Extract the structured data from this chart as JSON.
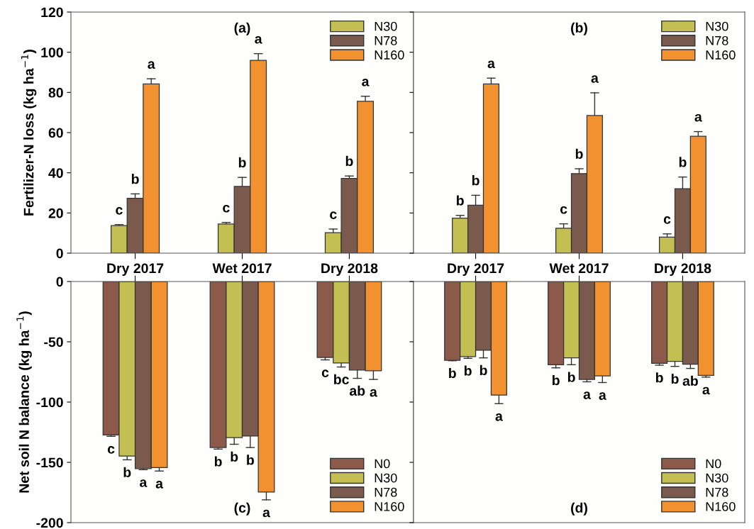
{
  "chart_data": [
    {
      "type": "bar",
      "title": "(a)",
      "ylabel": "Fertilizer-N loss (kg ha$^{−1}$)",
      "categories": [
        "Dry 2017",
        "Wet 2017",
        "Dry 2018"
      ],
      "ylim": [
        0,
        120
      ],
      "yticks": [
        0,
        20,
        40,
        60,
        80,
        100,
        120
      ],
      "legend": "top right",
      "series": [
        {
          "name": "N30",
          "color": "#c4bf52",
          "values": [
            13.7,
            14.5,
            10.2
          ],
          "errors": [
            [
              13.7,
              14.2
            ],
            [
              14.5,
              15.3
            ],
            [
              10.2,
              12.0
            ]
          ],
          "value_labels": [
            "c",
            "c",
            "c"
          ]
        },
        {
          "name": "N78",
          "color": "#7a5a4c",
          "values": [
            27.3,
            33.2,
            37.2
          ],
          "errors": [
            [
              27.3,
              29.5
            ],
            [
              33.2,
              37.7
            ],
            [
              37.2,
              38.4
            ]
          ],
          "value_labels": [
            "b",
            "b",
            "b"
          ]
        },
        {
          "name": "N160",
          "color": "#f29130",
          "values": [
            84.2,
            96.0,
            75.6
          ],
          "errors": [
            [
              84.2,
              86.8
            ],
            [
              96.0,
              99.3
            ],
            [
              75.6,
              78.1
            ]
          ],
          "value_labels": [
            "a",
            "a",
            "a"
          ]
        }
      ]
    },
    {
      "type": "bar",
      "title": "(b)",
      "categories": [
        "Dry 2017",
        "Wet 2017",
        "Dry 2018"
      ],
      "ylim": [
        0,
        120
      ],
      "yticks": [
        0,
        20,
        40,
        60,
        80,
        100,
        120
      ],
      "tick_labels": "x",
      "legend": "top right",
      "series": [
        {
          "name": "N30",
          "color": "#c4bf52",
          "values": [
            17.4,
            12.4,
            8.0
          ],
          "errors": [
            [
              17.4,
              18.8
            ],
            [
              12.4,
              14.6
            ],
            [
              8.0,
              9.6
            ]
          ],
          "value_labels": [
            "b",
            "c",
            "c"
          ]
        },
        {
          "name": "N78",
          "color": "#7a5a4c",
          "values": [
            23.9,
            39.6,
            32.1
          ],
          "errors": [
            [
              23.9,
              28.8
            ],
            [
              39.6,
              42.0
            ],
            [
              32.1,
              37.9
            ]
          ],
          "value_labels": [
            "b",
            "b",
            "b"
          ]
        },
        {
          "name": "N160",
          "color": "#f29130",
          "values": [
            84.2,
            68.5,
            58.2
          ],
          "errors": [
            [
              84.2,
              87.1
            ],
            [
              68.5,
              79.8
            ],
            [
              58.2,
              60.5
            ]
          ],
          "value_labels": [
            "a",
            "a",
            "a"
          ]
        }
      ]
    },
    {
      "type": "bar",
      "title": "(c)",
      "ylabel": "Net soil N balance (kg ha$^{−1}$)",
      "categories": [
        null,
        null,
        null
      ],
      "ylim": [
        -200,
        0
      ],
      "yticks": [
        -200,
        -150,
        -100,
        -50,
        0
      ],
      "tick_labels": "y",
      "legend": "bottom right",
      "series": [
        {
          "name": "N0",
          "color": "#8c5a4a",
          "values": [
            -127.3,
            -137.7,
            -63.0
          ],
          "errors": [
            [
              -128.4,
              -127.3
            ],
            [
              -139.0,
              -137.7
            ],
            [
              -65.0,
              -63.0
            ]
          ],
          "value_labels": [
            "c",
            "b",
            "c"
          ]
        },
        {
          "name": "N30",
          "color": "#c4bf52",
          "values": [
            -144.8,
            -129.5,
            -67.6
          ],
          "errors": [
            [
              -147.9,
              -144.8
            ],
            [
              -135.0,
              -129.5
            ],
            [
              -70.9,
              -67.6
            ]
          ],
          "value_labels": [
            "b",
            "b",
            "bc"
          ]
        },
        {
          "name": "N78",
          "color": "#7a5a4c",
          "values": [
            -155.2,
            -128.2,
            -73.4
          ],
          "errors": [
            [
              -156.1,
              -155.2
            ],
            [
              -137.7,
              -128.2
            ],
            [
              -80.3,
              -73.4
            ]
          ],
          "value_labels": [
            "a",
            "b",
            "ab"
          ]
        },
        {
          "name": "N160",
          "color": "#f29130",
          "values": [
            -154.3,
            -174.7,
            -74.1
          ],
          "errors": [
            [
              -157.2,
              -154.3
            ],
            [
              -181.1,
              -174.7
            ],
            [
              -81.2,
              -74.1
            ]
          ],
          "value_labels": [
            "a",
            "a",
            "a"
          ]
        }
      ]
    },
    {
      "type": "bar",
      "title": "(d)",
      "categories": [
        null,
        null,
        null
      ],
      "ylim": [
        -200,
        0
      ],
      "yticks": [
        -200,
        -150,
        -100,
        -50,
        0
      ],
      "tick_labels": false,
      "legend": "bottom right",
      "series": [
        {
          "name": "N0",
          "color": "#8c5a4a",
          "values": [
            -65.3,
            -69.0,
            -67.8
          ],
          "errors": [
            [
              -65.7,
              -65.3
            ],
            [
              -71.6,
              -69.0
            ],
            [
              -69.4,
              -67.8
            ]
          ],
          "value_labels": [
            "b",
            "b",
            "b"
          ]
        },
        {
          "name": "N30",
          "color": "#c4bf52",
          "values": [
            -62.3,
            -63.3,
            -66.3
          ],
          "errors": [
            [
              -63.7,
              -62.3
            ],
            [
              -69.0,
              -63.3
            ],
            [
              -70.4,
              -66.3
            ]
          ],
          "value_labels": [
            "b",
            "b",
            "b"
          ]
        },
        {
          "name": "N78",
          "color": "#7a5a4c",
          "values": [
            -57.0,
            -81.2,
            -68.6
          ],
          "errors": [
            [
              -63.3,
              -57.0
            ],
            [
              -83.2,
              -81.2
            ],
            [
              -72.1,
              -68.6
            ]
          ],
          "value_labels": [
            "b",
            "a",
            "ab"
          ]
        },
        {
          "name": "N160",
          "color": "#f29130",
          "values": [
            -94.2,
            -78.3,
            -77.9
          ],
          "errors": [
            [
              -101.3,
              -94.2
            ],
            [
              -83.8,
              -78.3
            ],
            [
              -79.3,
              -77.9
            ]
          ],
          "value_labels": [
            "a",
            "a",
            "a"
          ]
        }
      ]
    }
  ]
}
